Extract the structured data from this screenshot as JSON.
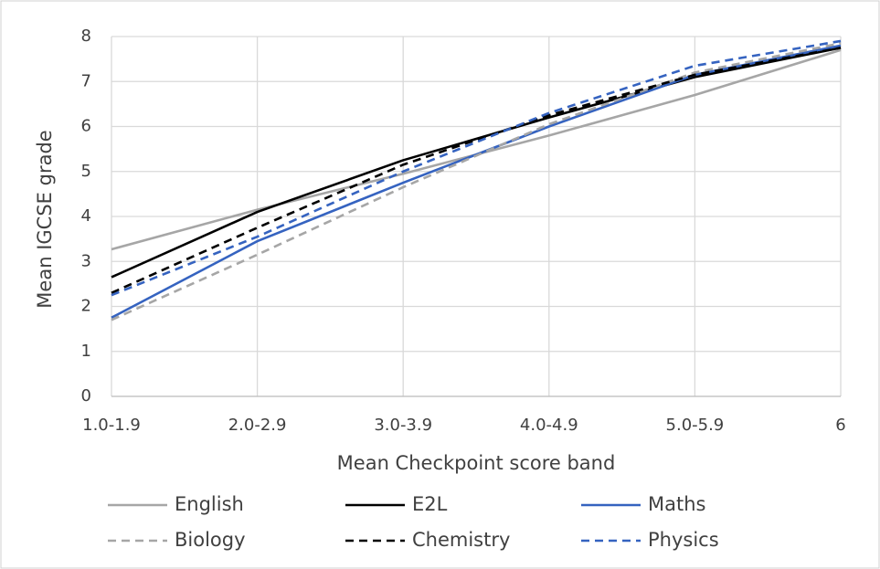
{
  "chart_data": {
    "type": "line",
    "x_label": "Mean Checkpoint score band",
    "y_label": "Mean IGCSE grade",
    "categories": [
      "1.0-1.9",
      "2.0-2.9",
      "3.0-3.9",
      "4.0-4.9",
      "5.0-5.9",
      "6"
    ],
    "series": [
      {
        "name": "English",
        "color": "#a6a6a6",
        "dashed": false,
        "values": [
          3.27,
          4.15,
          4.95,
          5.8,
          6.7,
          7.7
        ]
      },
      {
        "name": "E2L",
        "color": "#000000",
        "dashed": false,
        "values": [
          2.65,
          4.1,
          5.25,
          6.2,
          7.1,
          7.75
        ]
      },
      {
        "name": "Maths",
        "color": "#3563c0",
        "dashed": false,
        "values": [
          1.75,
          3.45,
          4.75,
          6.0,
          7.15,
          7.8
        ]
      },
      {
        "name": "Biology",
        "color": "#a6a6a6",
        "dashed": true,
        "values": [
          1.7,
          3.15,
          4.65,
          6.05,
          7.2,
          7.85
        ]
      },
      {
        "name": "Chemistry",
        "color": "#000000",
        "dashed": true,
        "values": [
          2.3,
          3.75,
          5.15,
          6.25,
          7.15,
          7.75
        ]
      },
      {
        "name": "Physics",
        "color": "#3563c0",
        "dashed": true,
        "values": [
          2.25,
          3.55,
          5.0,
          6.3,
          7.35,
          7.9
        ]
      }
    ],
    "ylim": [
      0,
      8
    ],
    "yticks": [
      0,
      1,
      2,
      3,
      4,
      5,
      6,
      7,
      8
    ],
    "grid": true
  }
}
